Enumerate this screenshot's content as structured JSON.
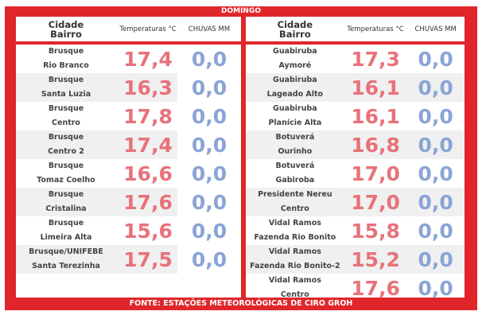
{
  "title": "DOMINGO",
  "footer": "FONTE: ESTAÇÕES METEOROLÓGICAS DE CIRO GROH",
  "headers": {
    "city": "Cidade",
    "district": "Bairro",
    "temp": "Temperaturas °C",
    "rain": "CHUVAS MM"
  },
  "left": [
    {
      "city": "Brusque",
      "district": "Rio Branco",
      "temp": "17,4",
      "rain": "0,0"
    },
    {
      "city": "Brusque",
      "district": "Santa Luzia",
      "temp": "16,3",
      "rain": "0,0"
    },
    {
      "city": "Brusque",
      "district": "Centro",
      "temp": "17,8",
      "rain": "0,0"
    },
    {
      "city": "Brusque",
      "district": "Centro 2",
      "temp": "17,4",
      "rain": "0,0"
    },
    {
      "city": "Brusque",
      "district": "Tomaz Coelho",
      "temp": "16,6",
      "rain": "0,0"
    },
    {
      "city": "Brusque",
      "district": "Cristalina",
      "temp": "17,6",
      "rain": "0,0"
    },
    {
      "city": "Brusque",
      "district": "Limeira Alta",
      "temp": "15,6",
      "rain": "0,0"
    },
    {
      "city": "Brusque/UNIFEBE",
      "district": "Santa Terezinha",
      "temp": "17,5",
      "rain": "0,0"
    }
  ],
  "right": [
    {
      "city": "Guabiruba",
      "district": "Aymoré",
      "temp": "17,3",
      "rain": "0,0"
    },
    {
      "city": "Guabiruba",
      "district": "Lageado Alto",
      "temp": "16,1",
      "rain": "0,0"
    },
    {
      "city": "Guabiruba",
      "district": "Planície Alta",
      "temp": "16,1",
      "rain": "0,0"
    },
    {
      "city": "Botuverá",
      "district": "Ourinho",
      "temp": "16,8",
      "rain": "0,0"
    },
    {
      "city": "Botuverá",
      "district": "Gabiroba",
      "temp": "17,0",
      "rain": "0,0"
    },
    {
      "city": "Presidente Nereu",
      "district": "Centro",
      "temp": "17,0",
      "rain": "0,0"
    },
    {
      "city": "Vidal Ramos",
      "district": "Fazenda Rio Bonito",
      "temp": "15,8",
      "rain": "0,0"
    },
    {
      "city": "Vidal Ramos",
      "district": "Fazenda Rio Bonito-2",
      "temp": "15,2",
      "rain": "0,0"
    },
    {
      "city": "Vidal Ramos",
      "district": "Centro",
      "temp": "17,6",
      "rain": "0,0"
    }
  ]
}
